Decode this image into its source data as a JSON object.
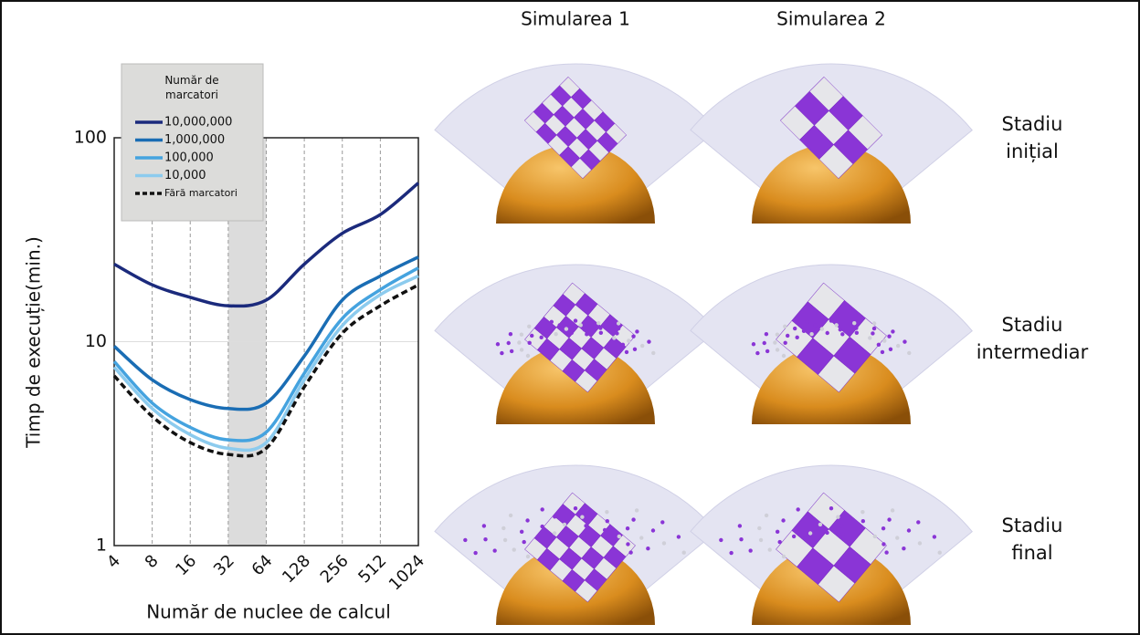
{
  "chart_data": {
    "type": "line",
    "y_label": "Timp de execuție(min.)",
    "x_label": "Număr de nuclee de calcul",
    "x": [
      4,
      8,
      16,
      32,
      64,
      128,
      256,
      512,
      1024
    ],
    "xlim": [
      4,
      1024
    ],
    "xticks": [
      4,
      8,
      16,
      32,
      64,
      128,
      256,
      512,
      1024
    ],
    "x_log_base": 2,
    "ylim": [
      1,
      100
    ],
    "yticks": [
      1,
      10,
      100
    ],
    "y_log_base": 10,
    "shaded_x": [
      32,
      64
    ],
    "legend_title": "Număr de marcatori",
    "series": [
      {
        "name": "10,000,000",
        "color": "#1b2a7c",
        "values": [
          24,
          19,
          16.5,
          15,
          16,
          24,
          34,
          42,
          60
        ]
      },
      {
        "name": "1,000,000",
        "color": "#1a6db4",
        "values": [
          9.5,
          6.5,
          5.2,
          4.7,
          5.0,
          8.5,
          16,
          21,
          26
        ]
      },
      {
        "name": "100,000",
        "color": "#45a3df",
        "values": [
          8,
          5,
          3.8,
          3.3,
          3.6,
          7,
          13,
          18,
          23
        ]
      },
      {
        "name": "10,000",
        "color": "#8ccbee",
        "values": [
          7.5,
          4.7,
          3.5,
          3.0,
          3.2,
          6.5,
          12,
          17,
          21
        ]
      },
      {
        "name": "Fără marcatori",
        "color": "#111111",
        "dashed": true,
        "values": [
          6.8,
          4.3,
          3.2,
          2.8,
          3.0,
          6,
          11,
          15,
          19
        ]
      }
    ]
  },
  "panels": {
    "columns": [
      "Simularea 1",
      "Simularea 2"
    ],
    "rows": [
      [
        "Stadiu",
        "inițial"
      ],
      [
        "Stadiu",
        "intermediar"
      ],
      [
        "Stadiu",
        "final"
      ]
    ]
  }
}
